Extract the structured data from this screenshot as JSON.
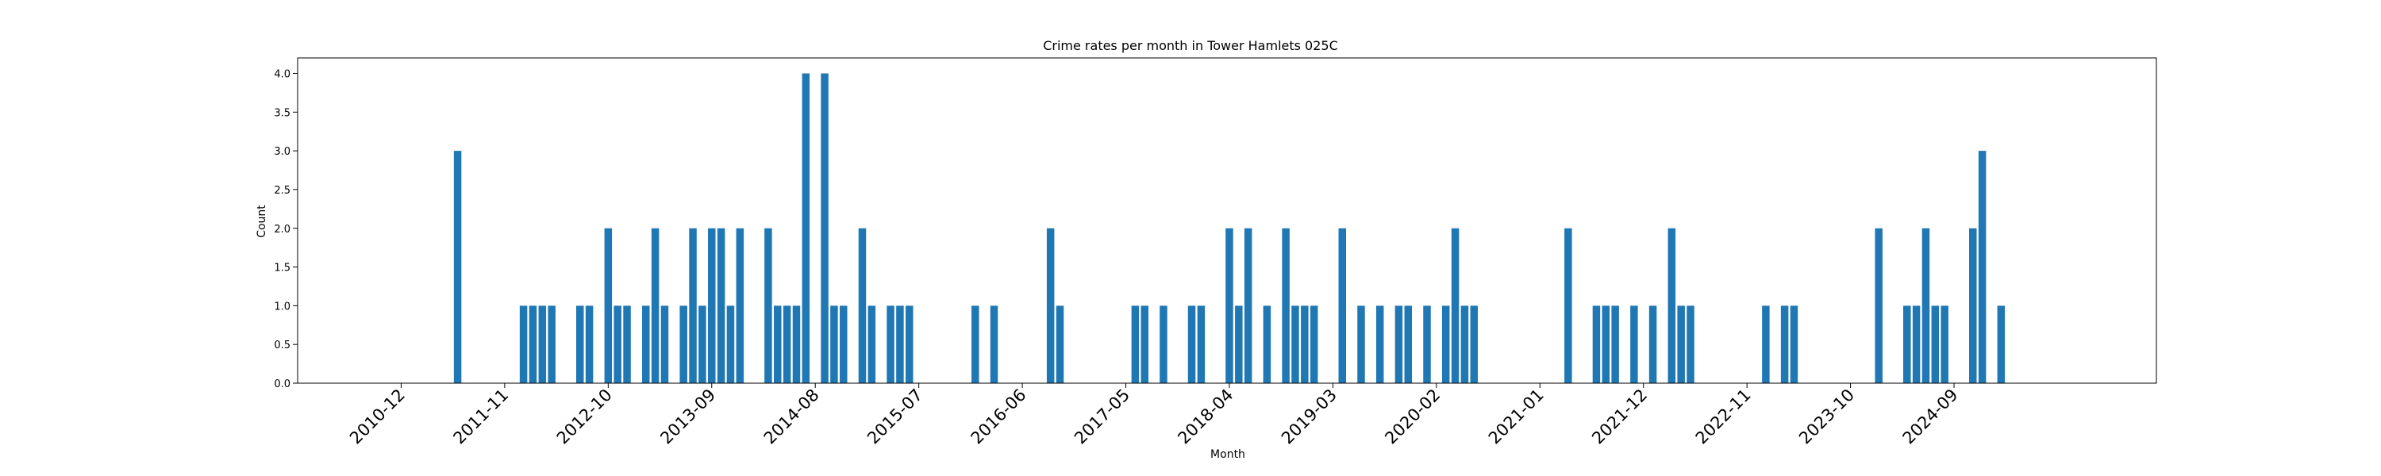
{
  "chart_data": {
    "type": "bar",
    "title": "Crime rates per month in Tower Hamlets 025C",
    "xlabel": "Month",
    "ylabel": "Count",
    "ylim": [
      0,
      4.2
    ],
    "ytick_labels": [
      "0.0",
      "0.5",
      "1.0",
      "1.5",
      "2.0",
      "2.5",
      "3.0",
      "3.5",
      "4.0"
    ],
    "yticks": [
      0,
      0.5,
      1,
      1.5,
      2,
      2.5,
      3,
      3.5,
      4
    ],
    "xtick_labels": [
      "2010-12",
      "2011-11",
      "2012-10",
      "2013-09",
      "2014-08",
      "2015-07",
      "2016-06",
      "2017-05",
      "2018-04",
      "2019-03",
      "2020-02",
      "2021-01",
      "2021-12",
      "2022-11",
      "2023-10",
      "2024-09"
    ],
    "categories": [
      "2011-06",
      "2012-01",
      "2012-02",
      "2012-03",
      "2012-04",
      "2012-07",
      "2012-08",
      "2012-10",
      "2012-11",
      "2012-12",
      "2013-02",
      "2013-03",
      "2013-04",
      "2013-06",
      "2013-07",
      "2013-08",
      "2013-09",
      "2013-10",
      "2013-11",
      "2013-12",
      "2014-03",
      "2014-04",
      "2014-05",
      "2014-06",
      "2014-07",
      "2014-09",
      "2014-10",
      "2014-11",
      "2015-01",
      "2015-02",
      "2015-04",
      "2015-05",
      "2015-06",
      "2016-01",
      "2016-03",
      "2016-09",
      "2016-10",
      "2017-06",
      "2017-07",
      "2017-09",
      "2017-12",
      "2018-01",
      "2018-04",
      "2018-05",
      "2018-06",
      "2018-08",
      "2018-10",
      "2018-11",
      "2018-12",
      "2019-01",
      "2019-04",
      "2019-06",
      "2019-08",
      "2019-10",
      "2019-11",
      "2020-01",
      "2020-03",
      "2020-04",
      "2020-05",
      "2020-06",
      "2021-04",
      "2021-07",
      "2021-08",
      "2021-09",
      "2021-11",
      "2022-01",
      "2022-03",
      "2022-04",
      "2022-05",
      "2023-01",
      "2023-03",
      "2023-04",
      "2024-01",
      "2024-04",
      "2024-05",
      "2024-06",
      "2024-07",
      "2024-08",
      "2024-11",
      "2024-12",
      "2025-02"
    ],
    "values": [
      3,
      1,
      1,
      1,
      1,
      1,
      1,
      2,
      1,
      1,
      1,
      2,
      1,
      1,
      2,
      1,
      2,
      2,
      1,
      2,
      2,
      1,
      1,
      1,
      4,
      4,
      1,
      1,
      2,
      1,
      1,
      1,
      1,
      1,
      1,
      2,
      1,
      1,
      1,
      1,
      1,
      1,
      2,
      1,
      2,
      1,
      2,
      1,
      1,
      1,
      2,
      1,
      1,
      1,
      1,
      1,
      1,
      2,
      1,
      1,
      2,
      1,
      1,
      1,
      1,
      1,
      2,
      1,
      1,
      1,
      1,
      1,
      2,
      1,
      1,
      2,
      1,
      1,
      2,
      3,
      1
    ],
    "bar_color": "#1f77b4",
    "grid": false,
    "legend": "none"
  }
}
